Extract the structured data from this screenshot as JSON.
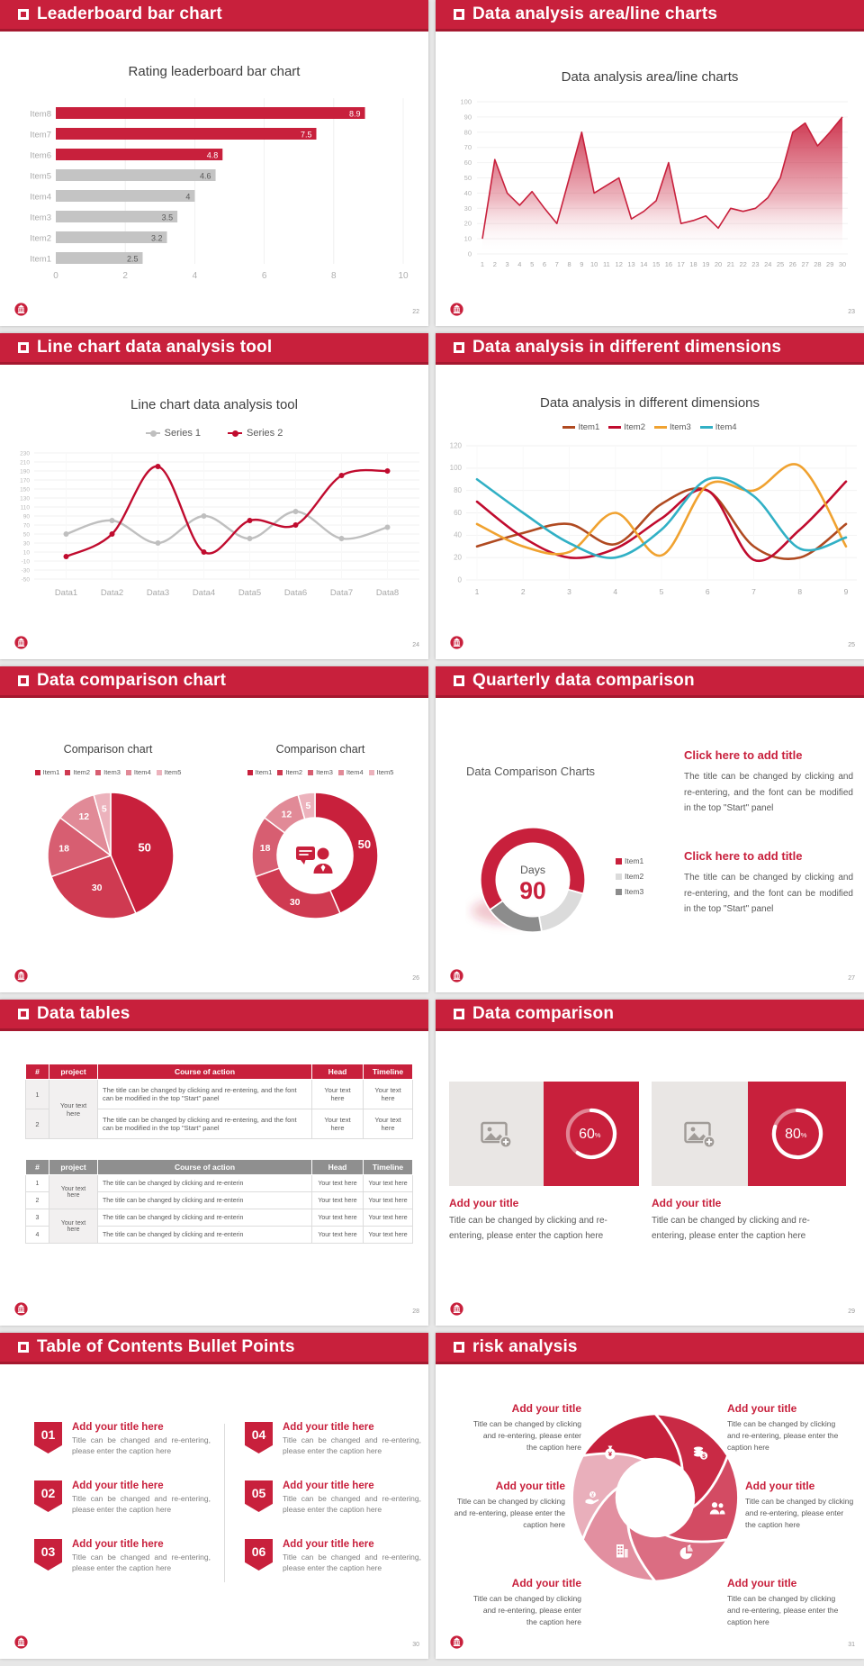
{
  "colors": {
    "accent_red": "#C8203C",
    "accent_red_dark": "#A5182F",
    "bar_gray": "#C4C4C4",
    "title_text": "#3F3F3F",
    "body_text": "#595959",
    "axis_text": "#A8A8A8",
    "table_gray_header": "#8F8F8F"
  },
  "slides": {
    "s22": {
      "header": "Leaderboard bar chart",
      "page": "22"
    },
    "s23": {
      "header": "Data analysis area/line charts",
      "page": "23"
    },
    "s24": {
      "header": "Line chart data analysis tool",
      "page": "24"
    },
    "s25": {
      "header": "Data analysis in different dimensions",
      "page": "25"
    },
    "s26": {
      "header": "Data comparison chart",
      "page": "26",
      "panel1_title": "Comparison chart",
      "panel2_title": "Comparison chart"
    },
    "s27": {
      "header": "Quarterly data comparison",
      "page": "27",
      "chart_label": "Data Comparison Charts",
      "blocks": [
        {
          "title": "Click here to add title",
          "body": "The title can be changed by clicking and re-entering, and the font can be modified in the top \"Start\" panel"
        },
        {
          "title": "Click here to add title",
          "body": "The title can be changed by clicking and re-entering, and the font can be modified in the top \"Start\" panel"
        }
      ]
    },
    "s28": {
      "header": "Data tables",
      "page": "28",
      "table1": {
        "headers": [
          "#",
          "project",
          "Course of action",
          "Head",
          "Timeline"
        ],
        "project": "Your text here",
        "rows": [
          {
            "num": "1",
            "action": "The title can be changed by clicking and re-entering, and the font can be modified in the top \"Start\" panel",
            "head": "Your text here",
            "timeline": "Your text here"
          },
          {
            "num": "2",
            "action": "The title can be changed by clicking and re-entering, and the font can be modified in the top \"Start\" panel",
            "head": "Your text here",
            "timeline": "Your text here"
          }
        ]
      },
      "table2": {
        "headers": [
          "#",
          "project",
          "Course of action",
          "Head",
          "Timeline"
        ],
        "project1": "Your text here",
        "project2": "Your text here",
        "rows": [
          {
            "num": "1",
            "action": "The title can be changed by clicking and re-enterin",
            "head": "Your text here",
            "timeline": "Your text here"
          },
          {
            "num": "2",
            "action": "The title can be changed by clicking and re-enterin",
            "head": "Your text here",
            "timeline": "Your text here"
          },
          {
            "num": "3",
            "action": "The title can be changed by clicking and re-enterin",
            "head": "Your text here",
            "timeline": "Your text here"
          },
          {
            "num": "4",
            "action": "The title can be changed by clicking and re-enterin",
            "head": "Your text here",
            "timeline": "Your text here"
          }
        ]
      }
    },
    "s29": {
      "header": "Data comparison",
      "page": "29",
      "cards": [
        {
          "title": "Add your title",
          "caption": "Title can be changed by clicking and re-entering, please enter the caption here"
        },
        {
          "title": "Add your title",
          "caption": "Title can be changed by clicking and re-entering, please enter the caption here"
        }
      ]
    },
    "s30": {
      "header": "Table of Contents Bullet Points",
      "page": "30",
      "items": [
        {
          "num": "01",
          "title": "Add your title here",
          "caption": "Title can be changed and re-entering, please enter the caption here"
        },
        {
          "num": "02",
          "title": "Add your title here",
          "caption": "Title can be changed and re-entering, please enter the caption here"
        },
        {
          "num": "03",
          "title": "Add your title here",
          "caption": "Title can be changed and re-entering, please enter the caption here"
        },
        {
          "num": "04",
          "title": "Add your title here",
          "caption": "Title can be changed and re-entering, please enter the caption here"
        },
        {
          "num": "05",
          "title": "Add your title here",
          "caption": "Title can be changed and re-entering, please enter the caption here"
        },
        {
          "num": "06",
          "title": "Add your title here",
          "caption": "Title can be changed and re-entering, please enter the caption here"
        }
      ]
    },
    "s31": {
      "header": "risk analysis",
      "page": "31",
      "blocks": [
        {
          "title": "Add your title",
          "caption": "Title can be changed by clicking and re-entering, please enter the caption here"
        },
        {
          "title": "Add your title",
          "caption": "Title can be changed by clicking and re-entering, please enter the caption here"
        },
        {
          "title": "Add your title",
          "caption": "Title can be changed by clicking and re-entering, please enter the caption here"
        },
        {
          "title": "Add your title",
          "caption": "Title can be changed by clicking and re-entering, please enter the caption here"
        },
        {
          "title": "Add your title",
          "caption": "Title can be changed by clicking and re-entering, please enter the caption here"
        },
        {
          "title": "Add your title",
          "caption": "Title can be changed by clicking and re-entering, please enter the caption here"
        }
      ]
    }
  },
  "chart_data": [
    {
      "id": "leaderboard",
      "type": "bar",
      "orientation": "horizontal",
      "title": "Rating leaderboard bar chart",
      "categories": [
        "Item1",
        "Item2",
        "Item3",
        "Item4",
        "Item5",
        "Item6",
        "Item7",
        "Item8"
      ],
      "values": [
        2.5,
        3.2,
        3.5,
        4,
        4.6,
        4.8,
        7.5,
        8.9
      ],
      "bar_colors": [
        "#C4C4C4",
        "#C4C4C4",
        "#C4C4C4",
        "#C4C4C4",
        "#C4C4C4",
        "#C8203C",
        "#C8203C",
        "#C8203C"
      ],
      "xlim": [
        0,
        10
      ],
      "xticks": [
        0,
        2,
        4,
        6,
        8,
        10
      ],
      "grid": true
    },
    {
      "id": "area30",
      "type": "area",
      "title": "Data analysis area/line charts",
      "x": [
        1,
        2,
        3,
        4,
        5,
        6,
        7,
        8,
        9,
        10,
        11,
        12,
        13,
        14,
        15,
        16,
        17,
        18,
        19,
        20,
        21,
        22,
        23,
        24,
        25,
        26,
        27,
        28,
        29,
        30
      ],
      "values": [
        10,
        62,
        40,
        32,
        41,
        30,
        20,
        50,
        80,
        40,
        45,
        50,
        23,
        28,
        35,
        60,
        20,
        22,
        25,
        17,
        30,
        28,
        30,
        37,
        50,
        80,
        86,
        71,
        80,
        90
      ],
      "ylim": [
        0,
        100
      ],
      "ytick_step": 10,
      "color": "#C8203C",
      "grid": true
    },
    {
      "id": "series2line",
      "type": "line",
      "title": "Line chart data analysis tool",
      "categories": [
        "Data1",
        "Data2",
        "Data3",
        "Data4",
        "Data5",
        "Data6",
        "Data7",
        "Data8"
      ],
      "ylim": [
        -50,
        230
      ],
      "ytick_step": 20,
      "markers": true,
      "smooth": true,
      "series": [
        {
          "name": "Series 1",
          "color": "#BFBFBF",
          "values": [
            50,
            80,
            30,
            90,
            40,
            100,
            40,
            65
          ]
        },
        {
          "name": "Series 2",
          "color": "#C00B2E",
          "values": [
            0,
            50,
            200,
            10,
            80,
            70,
            180,
            190
          ]
        }
      ]
    },
    {
      "id": "dims",
      "type": "line",
      "title": "Data analysis in different dimensions",
      "x": [
        1,
        2,
        3,
        4,
        5,
        6,
        7,
        8,
        9
      ],
      "ylim": [
        0,
        120
      ],
      "ytick_step": 20,
      "markers": false,
      "smooth": true,
      "series": [
        {
          "name": "Item1",
          "color": "#B04A21",
          "values": [
            30,
            42,
            50,
            32,
            68,
            80,
            30,
            20,
            50
          ]
        },
        {
          "name": "Item2",
          "color": "#C00B2E",
          "values": [
            70,
            38,
            20,
            28,
            55,
            80,
            18,
            45,
            88
          ]
        },
        {
          "name": "Item3",
          "color": "#F0A230",
          "values": [
            50,
            30,
            25,
            60,
            22,
            85,
            80,
            102,
            30
          ]
        },
        {
          "name": "Item4",
          "color": "#31B0C5",
          "values": [
            90,
            60,
            33,
            20,
            45,
            90,
            75,
            28,
            38
          ]
        }
      ]
    },
    {
      "id": "pie5",
      "type": "pie",
      "title": "Comparison chart",
      "labels": [
        "Item1",
        "Item2",
        "Item3",
        "Item4",
        "Item5"
      ],
      "values": [
        50,
        30,
        18,
        12,
        5
      ],
      "colors": [
        "#C8203C",
        "#CF3A51",
        "#D75E71",
        "#E18A97",
        "#ECB2BC"
      ]
    },
    {
      "id": "donut5",
      "type": "pie",
      "donut": true,
      "title": "Comparison chart",
      "labels": [
        "Item1",
        "Item2",
        "Item3",
        "Item4",
        "Item5"
      ],
      "values": [
        50,
        30,
        18,
        12,
        5
      ],
      "colors": [
        "#C8203C",
        "#CF3A51",
        "#D75E71",
        "#E18A97",
        "#ECB2BC"
      ],
      "center_icon": "businessman"
    },
    {
      "id": "days90",
      "type": "donut",
      "values": [
        64,
        18,
        18
      ],
      "start_angle": 235,
      "colors": [
        "#C8203C",
        "#DBDBDB",
        "#8C8C8C"
      ],
      "legend": [
        "Item1",
        "Item2",
        "Item3"
      ],
      "center_label": "Days",
      "center_value": "90"
    },
    {
      "id": "ring60",
      "type": "progress",
      "value": 60,
      "suffix": "%"
    },
    {
      "id": "ring80",
      "type": "progress",
      "value": 80,
      "suffix": "%"
    },
    {
      "id": "pinwheel",
      "type": "pinwheel",
      "colors": [
        "#C92A45",
        "#D34B63",
        "#DB6D82",
        "#E28FA0",
        "#E9AFBB",
        "#C6203C"
      ],
      "icons": [
        "coins",
        "people",
        "pie-chart",
        "building",
        "hand-coins",
        "money-bag"
      ]
    }
  ]
}
